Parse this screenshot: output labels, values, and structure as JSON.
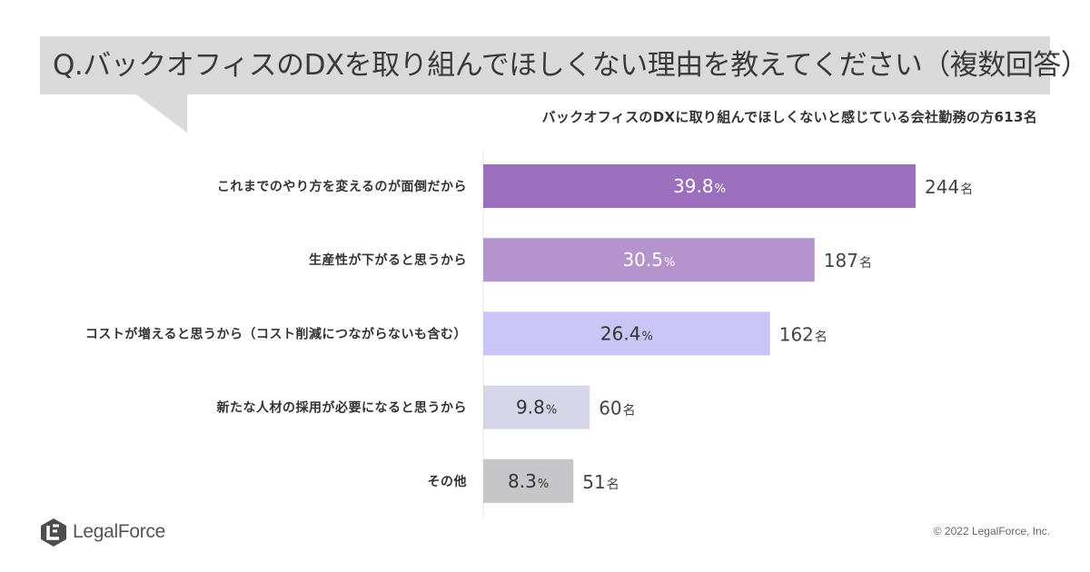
{
  "title": "Q.バックオフィスのDXを取り組んでほしくない理由を教えてください（複数回答）",
  "subtitle": "バックオフィスのDXに取り組んでほしくないと感じている会社勤務の方613名",
  "logo_text": "LegalForce",
  "copyright": "© 2022 LegalForce, Inc.",
  "chart_data": {
    "type": "bar",
    "orientation": "horizontal",
    "categories": [
      "これまでのやり方を変えるのが面倒だから",
      "生産性が下がると思うから",
      "コストが増えると思うから（コスト削減につながらないも含む）",
      "新たな人材の採用が必要になると思うから",
      "その他"
    ],
    "values": [
      39.8,
      30.5,
      26.4,
      9.8,
      8.3
    ],
    "counts": [
      244,
      187,
      162,
      60,
      51
    ],
    "value_unit": "%",
    "count_unit": "名",
    "bar_colors": [
      "#9b6fbc",
      "#b593cc",
      "#c9c6f7",
      "#d5d7e9",
      "#c6c6c8"
    ],
    "label_colors": [
      "#ffffff",
      "#ffffff",
      "#333333",
      "#333333",
      "#333333"
    ],
    "grid": false,
    "legend": "none"
  }
}
